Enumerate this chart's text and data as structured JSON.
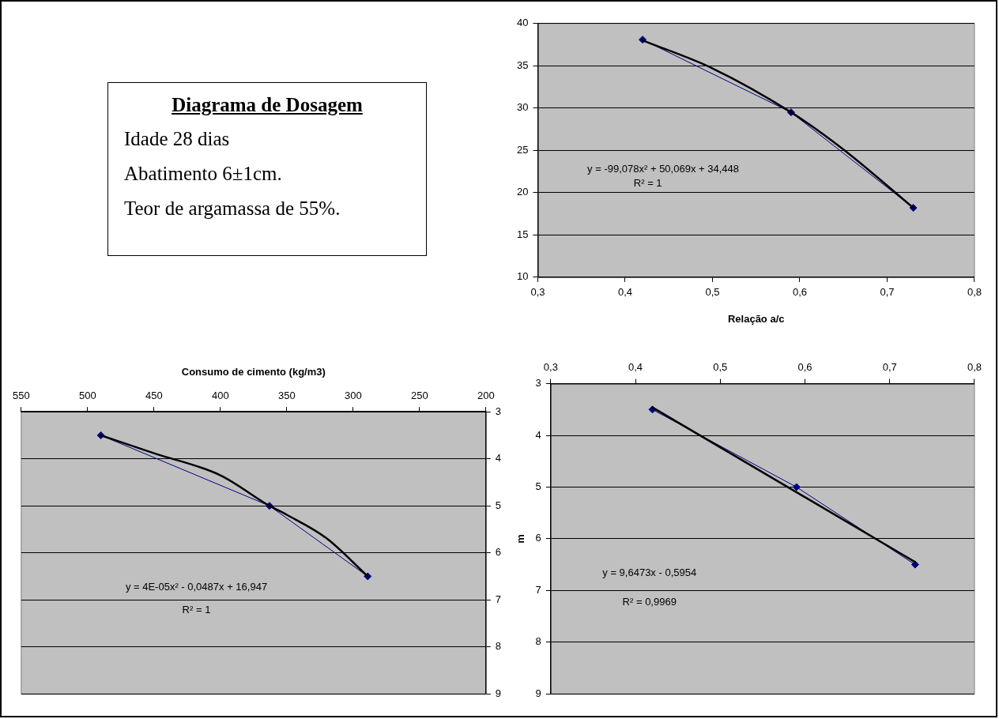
{
  "chart_data": [
    {
      "type": "other",
      "title": "Diagrama de Dosagem",
      "annotations": [
        "Idade 28 dias",
        "Abatimento 6±1cm.",
        "Teor de argamassa de 55%."
      ]
    },
    {
      "type": "line",
      "xlabel": "Relação a/c",
      "xlim": [
        0.3,
        0.8
      ],
      "xticks": [
        {
          "value": 0.3,
          "label": "0,3"
        },
        {
          "value": 0.4,
          "label": "0,4"
        },
        {
          "value": 0.5,
          "label": "0,5"
        },
        {
          "value": 0.6,
          "label": "0,6"
        },
        {
          "value": 0.7,
          "label": "0,7"
        },
        {
          "value": 0.8,
          "label": "0,8"
        }
      ],
      "ylim": [
        10,
        40
      ],
      "yticks": [
        10,
        15,
        20,
        25,
        30,
        35,
        40
      ],
      "grid": "y",
      "legend": false,
      "series": [
        {
          "color": "#000080",
          "marker": "diamond",
          "x": [
            0.42,
            0.59,
            0.73
          ],
          "values": [
            38.1,
            29.5,
            18.2
          ]
        },
        {
          "type": "line",
          "color": "#000000",
          "marker": "none",
          "x": [
            0.42,
            0.5,
            0.59,
            0.65,
            0.73
          ],
          "values": [
            38.0,
            34.7,
            29.5,
            25.1,
            18.2
          ]
        }
      ],
      "annotations": [
        "y = -99,078x² + 50,069x + 34,448",
        "R² = 1"
      ]
    },
    {
      "type": "line",
      "xlabel": "Consumo de cimento (kg/m3)",
      "xlim": [
        550,
        200
      ],
      "xticks": [
        550,
        500,
        450,
        400,
        350,
        300,
        250,
        200
      ],
      "ylim": [
        9,
        3
      ],
      "yticks": [
        3,
        4,
        5,
        6,
        7,
        8,
        9
      ],
      "grid": "y",
      "legend": false,
      "series": [
        {
          "color": "#000080",
          "marker": "diamond",
          "x": [
            490,
            363,
            289
          ],
          "values": [
            3.5,
            5.0,
            6.5
          ]
        },
        {
          "type": "line",
          "color": "#000000",
          "marker": "none",
          "x": [
            490,
            450,
            400,
            363,
            350,
            320,
            289
          ],
          "values": [
            3.5,
            3.88,
            4.35,
            5.0,
            5.19,
            5.69,
            6.5
          ]
        }
      ],
      "annotations": [
        "y = 4E-05x² - 0,0487x + 16,947",
        "R² = 1"
      ]
    },
    {
      "type": "line",
      "ylabel": "m",
      "xlim": [
        0.3,
        0.8
      ],
      "xticks": [
        {
          "value": 0.3,
          "label": "0,3"
        },
        {
          "value": 0.4,
          "label": "0,4"
        },
        {
          "value": 0.5,
          "label": "0,5"
        },
        {
          "value": 0.6,
          "label": "0,6"
        },
        {
          "value": 0.7,
          "label": "0,7"
        },
        {
          "value": 0.8,
          "label": "0,8"
        }
      ],
      "ylim": [
        9,
        3
      ],
      "yticks": [
        3,
        4,
        5,
        6,
        7,
        8,
        9
      ],
      "grid": "y",
      "legend": false,
      "series": [
        {
          "color": "#000080",
          "marker": "diamond",
          "x": [
            0.42,
            0.59,
            0.73
          ],
          "values": [
            3.5,
            5.0,
            6.5
          ]
        },
        {
          "type": "line",
          "color": "#000000",
          "marker": "none",
          "x": [
            0.42,
            0.73
          ],
          "values": [
            3.46,
            6.45
          ]
        }
      ],
      "annotations": [
        "y = 9,6473x - 0,5954",
        "R² = 0,9969"
      ]
    }
  ]
}
